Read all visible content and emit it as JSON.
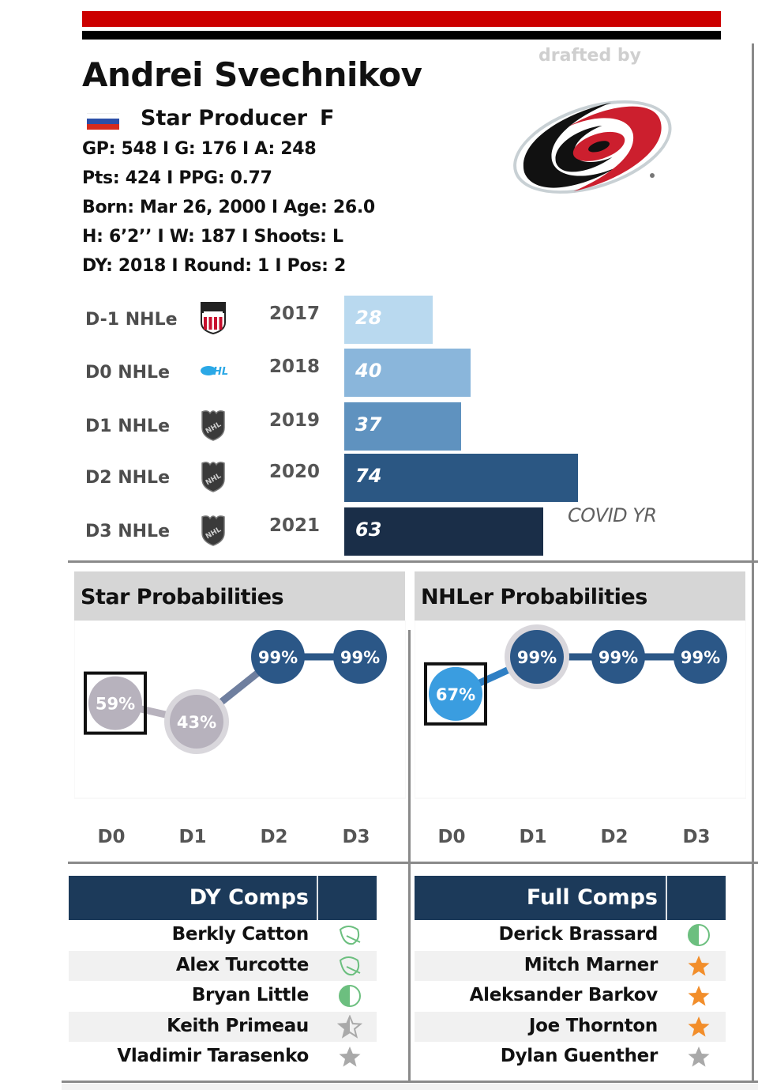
{
  "player": {
    "name": "Andrei Svechnikov",
    "nationality_flag": "russia-flag",
    "archetype": "Star Producer",
    "position": "F",
    "stats_lines": [
      "GP: 548 I G: 176 I A: 248",
      "Pts: 424 I PPG: 0.77",
      "Born: Mar 26, 2000 I Age: 26.0",
      "H: 6’2’’ I W: 187 I Shoots: L",
      "DY: 2018 I Round: 1 I Pos: 2"
    ]
  },
  "draft": {
    "label": "drafted by",
    "team_logo": "carolina-hurricanes-logo"
  },
  "colors": {
    "top_bar_red": "#cc0000",
    "top_bar_black": "#000000",
    "header_navy": "#1c3a5a",
    "prob_dark": "#2b5787",
    "prob_grey": "#b7b2bd",
    "prob_light_blue": "#3a9de0",
    "star_orange": "#f28e2b",
    "star_grey": "#a9a9a9",
    "leaf_green": "#6cbf7f"
  },
  "chart_data": [
    {
      "type": "bar",
      "orientation": "horizontal",
      "title": "NHLe by season",
      "categories": [
        "D-1 NHLe",
        "D0 NHLe",
        "D1 NHLe",
        "D2 NHLe",
        "D3 NHLe"
      ],
      "league_icons": [
        "ushl-logo",
        "ohl-logo",
        "nhl-logo",
        "nhl-logo",
        "nhl-logo"
      ],
      "seasons": [
        "2017",
        "2018",
        "2019",
        "2020",
        "2021"
      ],
      "values": [
        28,
        40,
        37,
        74,
        63
      ],
      "bar_colors": [
        "#b9d9ef",
        "#8ab6db",
        "#5f92bf",
        "#2b5783",
        "#1a2e48"
      ],
      "annotation": "COVID YR",
      "annotation_row": 4,
      "xlim": [
        0,
        110
      ]
    },
    {
      "type": "line",
      "title": "Star Probabilities",
      "x": [
        "D0",
        "D1",
        "D2",
        "D3"
      ],
      "values": [
        59,
        43,
        99,
        99
      ],
      "labels": [
        "59%",
        "43%",
        "99%",
        "99%"
      ],
      "ylim": [
        0,
        100
      ],
      "highlighted_index": 0
    },
    {
      "type": "line",
      "title": "NHLer Probabilities",
      "x": [
        "D0",
        "D1",
        "D2",
        "D3"
      ],
      "values": [
        67,
        99,
        99,
        99
      ],
      "labels": [
        "67%",
        "99%",
        "99%",
        "99%"
      ],
      "ylim": [
        0,
        100
      ],
      "highlighted_index": 0
    }
  ],
  "dy_comps": {
    "title": "DY Comps",
    "rows": [
      {
        "name": "Berkly Catton",
        "icon": "leaf-icon"
      },
      {
        "name": "Alex Turcotte",
        "icon": "leaf-icon"
      },
      {
        "name": "Bryan Little",
        "icon": "half-circle-icon"
      },
      {
        "name": "Keith Primeau",
        "icon": "half-star-icon"
      },
      {
        "name": "Vladimir Tarasenko",
        "icon": "grey-star-icon"
      }
    ]
  },
  "full_comps": {
    "title": "Full Comps",
    "rows": [
      {
        "name": "Derick Brassard",
        "icon": "half-circle-icon"
      },
      {
        "name": "Mitch Marner",
        "icon": "orange-star-icon"
      },
      {
        "name": "Aleksander Barkov",
        "icon": "orange-star-icon"
      },
      {
        "name": "Joe Thornton",
        "icon": "orange-star-icon"
      },
      {
        "name": "Dylan Guenther",
        "icon": "grey-star-icon"
      }
    ]
  }
}
